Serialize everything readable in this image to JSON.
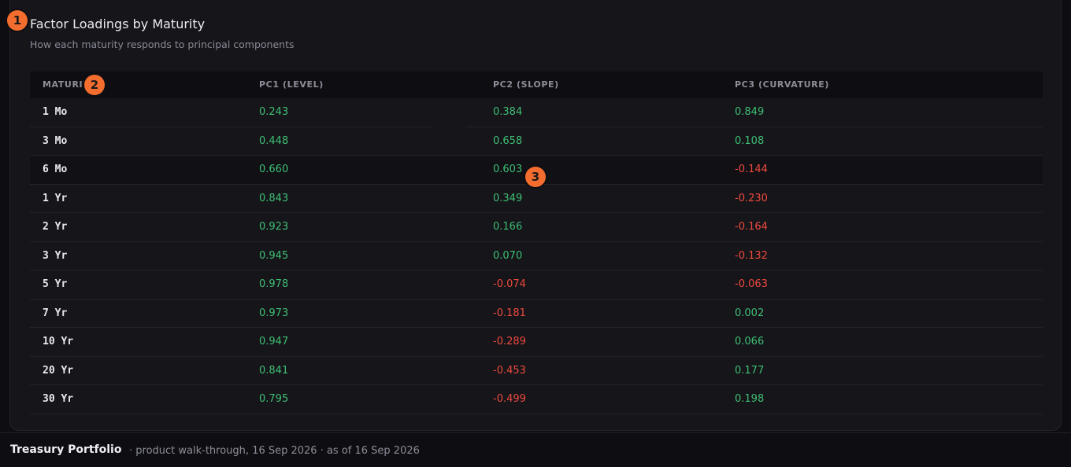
{
  "card": {
    "title": "Factor Loadings by Maturity",
    "subtitle": "How each maturity responds to principal components"
  },
  "table": {
    "headers": [
      "MATURITY",
      "PC1 (LEVEL)",
      "PC2 (SLOPE)",
      "PC3 (CURVATURE)"
    ],
    "rows": [
      {
        "maturity": "1 Mo",
        "pc1": "0.243",
        "pc2": "0.384",
        "pc3": "0.849"
      },
      {
        "maturity": "3 Mo",
        "pc1": "0.448",
        "pc2": "0.658",
        "pc3": "0.108"
      },
      {
        "maturity": "6 Mo",
        "pc1": "0.660",
        "pc2": "0.603",
        "pc3": "-0.144"
      },
      {
        "maturity": "1 Yr",
        "pc1": "0.843",
        "pc2": "0.349",
        "pc3": "-0.230"
      },
      {
        "maturity": "2 Yr",
        "pc1": "0.923",
        "pc2": "0.166",
        "pc3": "-0.164"
      },
      {
        "maturity": "3 Yr",
        "pc1": "0.945",
        "pc2": "0.070",
        "pc3": "-0.132"
      },
      {
        "maturity": "5 Yr",
        "pc1": "0.978",
        "pc2": "-0.074",
        "pc3": "-0.063"
      },
      {
        "maturity": "7 Yr",
        "pc1": "0.973",
        "pc2": "-0.181",
        "pc3": "0.002"
      },
      {
        "maturity": "10 Yr",
        "pc1": "0.947",
        "pc2": "-0.289",
        "pc3": "0.066"
      },
      {
        "maturity": "20 Yr",
        "pc1": "0.841",
        "pc2": "-0.453",
        "pc3": "0.177"
      },
      {
        "maturity": "30 Yr",
        "pc1": "0.795",
        "pc2": "-0.499",
        "pc3": "0.198"
      }
    ]
  },
  "annotations": [
    "1",
    "2",
    "3"
  ],
  "footer": {
    "brand": "Treasury Portfolio",
    "meta": "· product walk-through, 16 Sep 2026 · as of 16 Sep 2026"
  },
  "colors": {
    "positive": "#3fbf74",
    "negative": "#ef4a3e",
    "badge": "#f26d2e"
  }
}
